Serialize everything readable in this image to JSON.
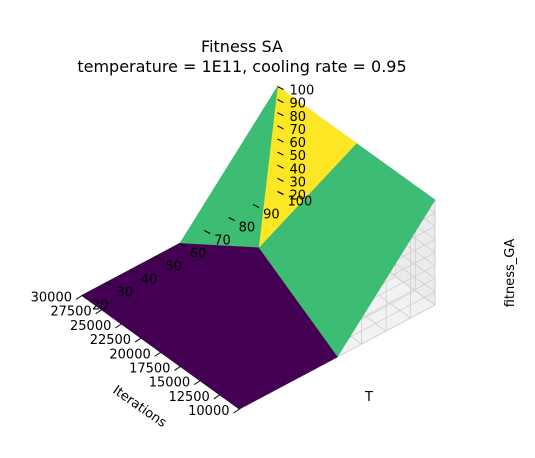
{
  "chart_data": {
    "type": "surface",
    "title": "Fitness SA",
    "subtitle": "temperature = 1E11, cooling rate = 0.95",
    "xlabel": "Iterations",
    "ylabel": "T",
    "zlabel": "fitness_GA",
    "x_ticks": [
      "10000",
      "12500",
      "15000",
      "17500",
      "20000",
      "22500",
      "25000",
      "27500",
      "30000"
    ],
    "y_ticks": [
      "20",
      "30",
      "40",
      "50",
      "60",
      "70",
      "80",
      "90",
      "100"
    ],
    "z_ticks": [
      "20",
      "30",
      "40",
      "50",
      "60",
      "70",
      "80",
      "90",
      "100"
    ],
    "xlim": [
      10000,
      30000
    ],
    "ylim": [
      20,
      100
    ],
    "zlim": [
      20,
      100
    ],
    "grid": true,
    "colormap": "viridis",
    "x": [
      10000,
      20000,
      30000
    ],
    "y": [
      20,
      60,
      100
    ],
    "z": [
      [
        20,
        20,
        100
      ],
      [
        20,
        60,
        100
      ],
      [
        20,
        20,
        100
      ]
    ],
    "colors": {
      "low": "#440154",
      "low_mid": "#443983",
      "mid": "#3dbc74",
      "high": "#fde725"
    }
  }
}
